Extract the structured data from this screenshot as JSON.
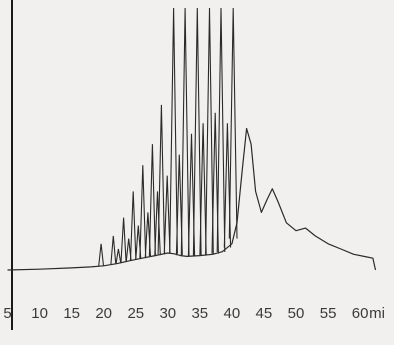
{
  "chart_data": {
    "type": "line",
    "title": "",
    "xlabel": "",
    "ylabel": "",
    "x_unit_suffix": "mi",
    "xlim": [
      5,
      63
    ],
    "ylim": [
      0,
      100
    ],
    "grid": false,
    "legend": "none",
    "x_ticks": [
      5,
      10,
      15,
      20,
      25,
      30,
      35,
      40,
      45,
      50,
      55,
      60
    ],
    "x_tick_labels": [
      "5",
      "10",
      "15",
      "20",
      "25",
      "30",
      "35",
      "40",
      "45",
      "50",
      "55",
      "60"
    ],
    "colors": {
      "background": "#f1f0ee",
      "trace": "#2a2a2a",
      "axis": "#1a1a1a",
      "tick_text": "#3a3a3a"
    },
    "series": [
      {
        "baseline": [
          [
            5,
            0
          ],
          [
            10,
            0.3
          ],
          [
            15,
            0.8
          ],
          [
            18,
            1.2
          ],
          [
            20,
            1.6
          ],
          [
            22,
            2.4
          ],
          [
            24,
            3.5
          ],
          [
            26,
            4.5
          ],
          [
            28,
            5.5
          ],
          [
            30,
            6.5
          ],
          [
            31,
            6.2
          ],
          [
            32,
            5.5
          ],
          [
            33,
            5.2
          ],
          [
            35,
            5.5
          ],
          [
            37,
            6
          ],
          [
            38.5,
            7
          ],
          [
            40,
            10
          ],
          [
            40.8,
            18
          ],
          [
            41.6,
            38
          ],
          [
            42.3,
            54
          ],
          [
            43,
            48
          ],
          [
            43.7,
            30
          ],
          [
            44.6,
            22
          ],
          [
            45.5,
            27
          ],
          [
            46.3,
            31
          ],
          [
            47.2,
            26
          ],
          [
            48.5,
            18
          ],
          [
            50,
            15
          ],
          [
            51.5,
            16
          ],
          [
            53,
            13
          ],
          [
            55,
            10
          ],
          [
            57,
            8
          ],
          [
            59,
            6
          ],
          [
            61,
            5
          ],
          [
            62,
            4.5
          ],
          [
            62.4,
            0
          ]
        ],
        "peaks": [
          [
            19.6,
            10
          ],
          [
            21.5,
            13
          ],
          [
            22.3,
            8
          ],
          [
            23.1,
            20
          ],
          [
            23.9,
            12
          ],
          [
            24.6,
            30
          ],
          [
            25.4,
            17
          ],
          [
            26.1,
            40
          ],
          [
            26.9,
            22
          ],
          [
            27.6,
            48
          ],
          [
            28.4,
            30
          ],
          [
            29.0,
            63
          ],
          [
            29.9,
            36
          ],
          [
            30.9,
            100
          ],
          [
            31.8,
            44
          ],
          [
            32.7,
            100
          ],
          [
            33.7,
            52
          ],
          [
            34.6,
            100
          ],
          [
            35.5,
            56
          ],
          [
            36.5,
            100
          ],
          [
            37.4,
            60
          ],
          [
            38.3,
            100
          ],
          [
            39.3,
            56
          ],
          [
            40.2,
            100
          ]
        ]
      }
    ]
  }
}
